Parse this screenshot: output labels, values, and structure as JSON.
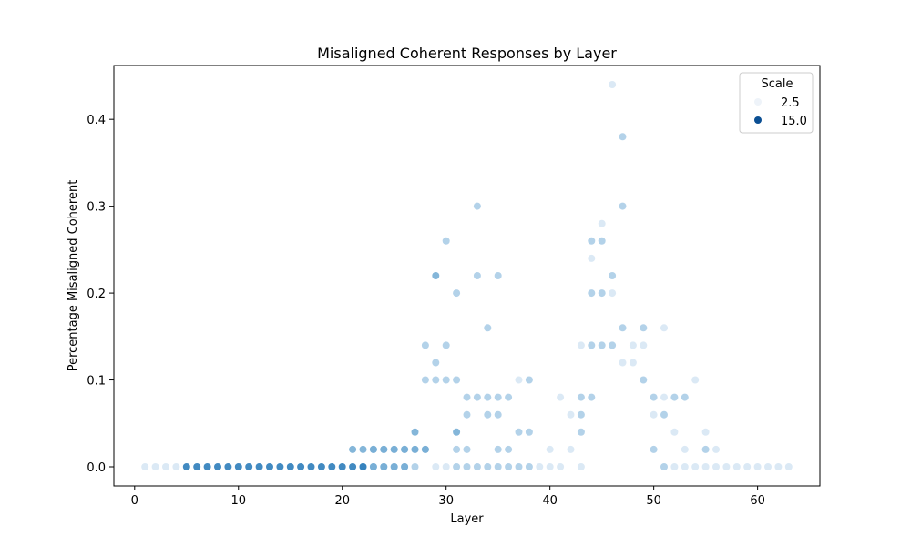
{
  "chart_data": {
    "type": "scatter",
    "title": "Misaligned Coherent Responses by Layer",
    "xlabel": "Layer",
    "ylabel": "Percentage Misaligned Coherent",
    "xlim": [
      -2,
      66
    ],
    "ylim": [
      -0.022,
      0.462
    ],
    "xticks": [
      0,
      10,
      20,
      30,
      40,
      50,
      60
    ],
    "yticks": [
      0.0,
      0.1,
      0.2,
      0.3,
      0.4
    ],
    "xtick_labels": [
      "0",
      "10",
      "20",
      "30",
      "40",
      "50",
      "60"
    ],
    "ytick_labels": [
      "0.0",
      "0.1",
      "0.2",
      "0.3",
      "0.4"
    ],
    "grid": false,
    "legend": {
      "title": "Scale",
      "placement": "top-right",
      "entries": [
        {
          "label": "2.5",
          "color": "#eef3f9"
        },
        {
          "label": "15.0",
          "color": "#0b4f93"
        }
      ]
    },
    "colors": {
      "light": "#eaf1f8",
      "mid": "#6fa9d2",
      "dark": "#2e7dba"
    },
    "series": [
      {
        "level": "light",
        "points": [
          [
            1,
            0
          ],
          [
            2,
            0
          ],
          [
            3,
            0
          ],
          [
            4,
            0
          ],
          [
            29,
            0
          ],
          [
            30,
            0
          ],
          [
            39,
            0
          ],
          [
            40,
            0
          ],
          [
            41,
            0
          ],
          [
            43,
            0
          ],
          [
            52,
            0
          ],
          [
            53,
            0
          ],
          [
            54,
            0
          ],
          [
            55,
            0
          ],
          [
            56,
            0
          ],
          [
            57,
            0
          ],
          [
            58,
            0
          ],
          [
            59,
            0
          ],
          [
            60,
            0
          ],
          [
            61,
            0
          ],
          [
            62,
            0
          ],
          [
            63,
            0
          ],
          [
            37,
            0.1
          ],
          [
            43,
            0.14
          ],
          [
            44,
            0.24
          ],
          [
            45,
            0.28
          ],
          [
            46,
            0.44
          ],
          [
            46,
            0.2
          ],
          [
            47,
            0.12
          ],
          [
            48,
            0.14
          ],
          [
            48,
            0.12
          ],
          [
            49,
            0.14
          ],
          [
            50,
            0.06
          ],
          [
            51,
            0.08
          ],
          [
            51,
            0.16
          ],
          [
            52,
            0.04
          ],
          [
            53,
            0.02
          ],
          [
            54,
            0.1
          ],
          [
            55,
            0.04
          ],
          [
            56,
            0.02
          ],
          [
            40,
            0.02
          ],
          [
            41,
            0.08
          ],
          [
            42,
            0.06
          ],
          [
            42,
            0.02
          ]
        ]
      },
      {
        "level": "medium",
        "points": [
          [
            23,
            0
          ],
          [
            24,
            0
          ],
          [
            25,
            0
          ],
          [
            26,
            0
          ],
          [
            27,
            0
          ],
          [
            31,
            0
          ],
          [
            32,
            0
          ],
          [
            33,
            0
          ],
          [
            34,
            0
          ],
          [
            35,
            0
          ],
          [
            36,
            0
          ],
          [
            37,
            0
          ],
          [
            38,
            0
          ],
          [
            28,
            0.1
          ],
          [
            28,
            0.14
          ],
          [
            29,
            0.1
          ],
          [
            29,
            0.12
          ],
          [
            30,
            0.1
          ],
          [
            30,
            0.14
          ],
          [
            30,
            0.26
          ],
          [
            31,
            0.1
          ],
          [
            31,
            0.2
          ],
          [
            31,
            0.02
          ],
          [
            32,
            0.08
          ],
          [
            32,
            0.06
          ],
          [
            32,
            0.02
          ],
          [
            33,
            0.3
          ],
          [
            33,
            0.22
          ],
          [
            33,
            0.08
          ],
          [
            34,
            0.16
          ],
          [
            34,
            0.08
          ],
          [
            34,
            0.06
          ],
          [
            35,
            0.22
          ],
          [
            35,
            0.08
          ],
          [
            35,
            0.06
          ],
          [
            35,
            0.02
          ],
          [
            36,
            0.08
          ],
          [
            36,
            0.02
          ],
          [
            37,
            0.04
          ],
          [
            38,
            0.04
          ],
          [
            38,
            0.1
          ],
          [
            43,
            0.08
          ],
          [
            43,
            0.06
          ],
          [
            43,
            0.04
          ],
          [
            44,
            0.26
          ],
          [
            44,
            0.2
          ],
          [
            44,
            0.14
          ],
          [
            44,
            0.08
          ],
          [
            45,
            0.26
          ],
          [
            45,
            0.2
          ],
          [
            45,
            0.14
          ],
          [
            46,
            0.22
          ],
          [
            46,
            0.14
          ],
          [
            47,
            0.38
          ],
          [
            47,
            0.3
          ],
          [
            47,
            0.16
          ],
          [
            49,
            0.16
          ],
          [
            49,
            0.1
          ],
          [
            50,
            0.08
          ],
          [
            50,
            0.02
          ],
          [
            51,
            0.06
          ],
          [
            51,
            0
          ],
          [
            52,
            0.08
          ],
          [
            53,
            0.08
          ],
          [
            55,
            0.02
          ],
          [
            27,
            0.02
          ],
          [
            28,
            0.02
          ],
          [
            23,
            0.02
          ],
          [
            24,
            0.02
          ],
          [
            25,
            0.02
          ],
          [
            26,
            0.02
          ]
        ]
      },
      {
        "level": "strong",
        "points": [
          [
            28,
            0.02
          ],
          [
            29,
            0.22
          ],
          [
            27,
            0.04
          ],
          [
            26,
            0.02
          ],
          [
            25,
            0.02
          ],
          [
            24,
            0.02
          ],
          [
            23,
            0.02
          ],
          [
            22,
            0.02
          ],
          [
            21,
            0.02
          ],
          [
            22,
            0
          ],
          [
            23,
            0
          ],
          [
            24,
            0
          ],
          [
            25,
            0
          ],
          [
            26,
            0
          ],
          [
            27,
            0.02
          ],
          [
            31,
            0.04
          ]
        ]
      },
      {
        "level": "dark",
        "points": [
          [
            5,
            0
          ],
          [
            6,
            0
          ],
          [
            7,
            0
          ],
          [
            8,
            0
          ],
          [
            9,
            0
          ],
          [
            10,
            0
          ],
          [
            11,
            0
          ],
          [
            12,
            0
          ],
          [
            13,
            0
          ],
          [
            14,
            0
          ],
          [
            15,
            0
          ],
          [
            16,
            0
          ],
          [
            17,
            0
          ],
          [
            18,
            0
          ],
          [
            19,
            0
          ],
          [
            20,
            0
          ],
          [
            21,
            0
          ],
          [
            22,
            0
          ]
        ]
      }
    ]
  }
}
